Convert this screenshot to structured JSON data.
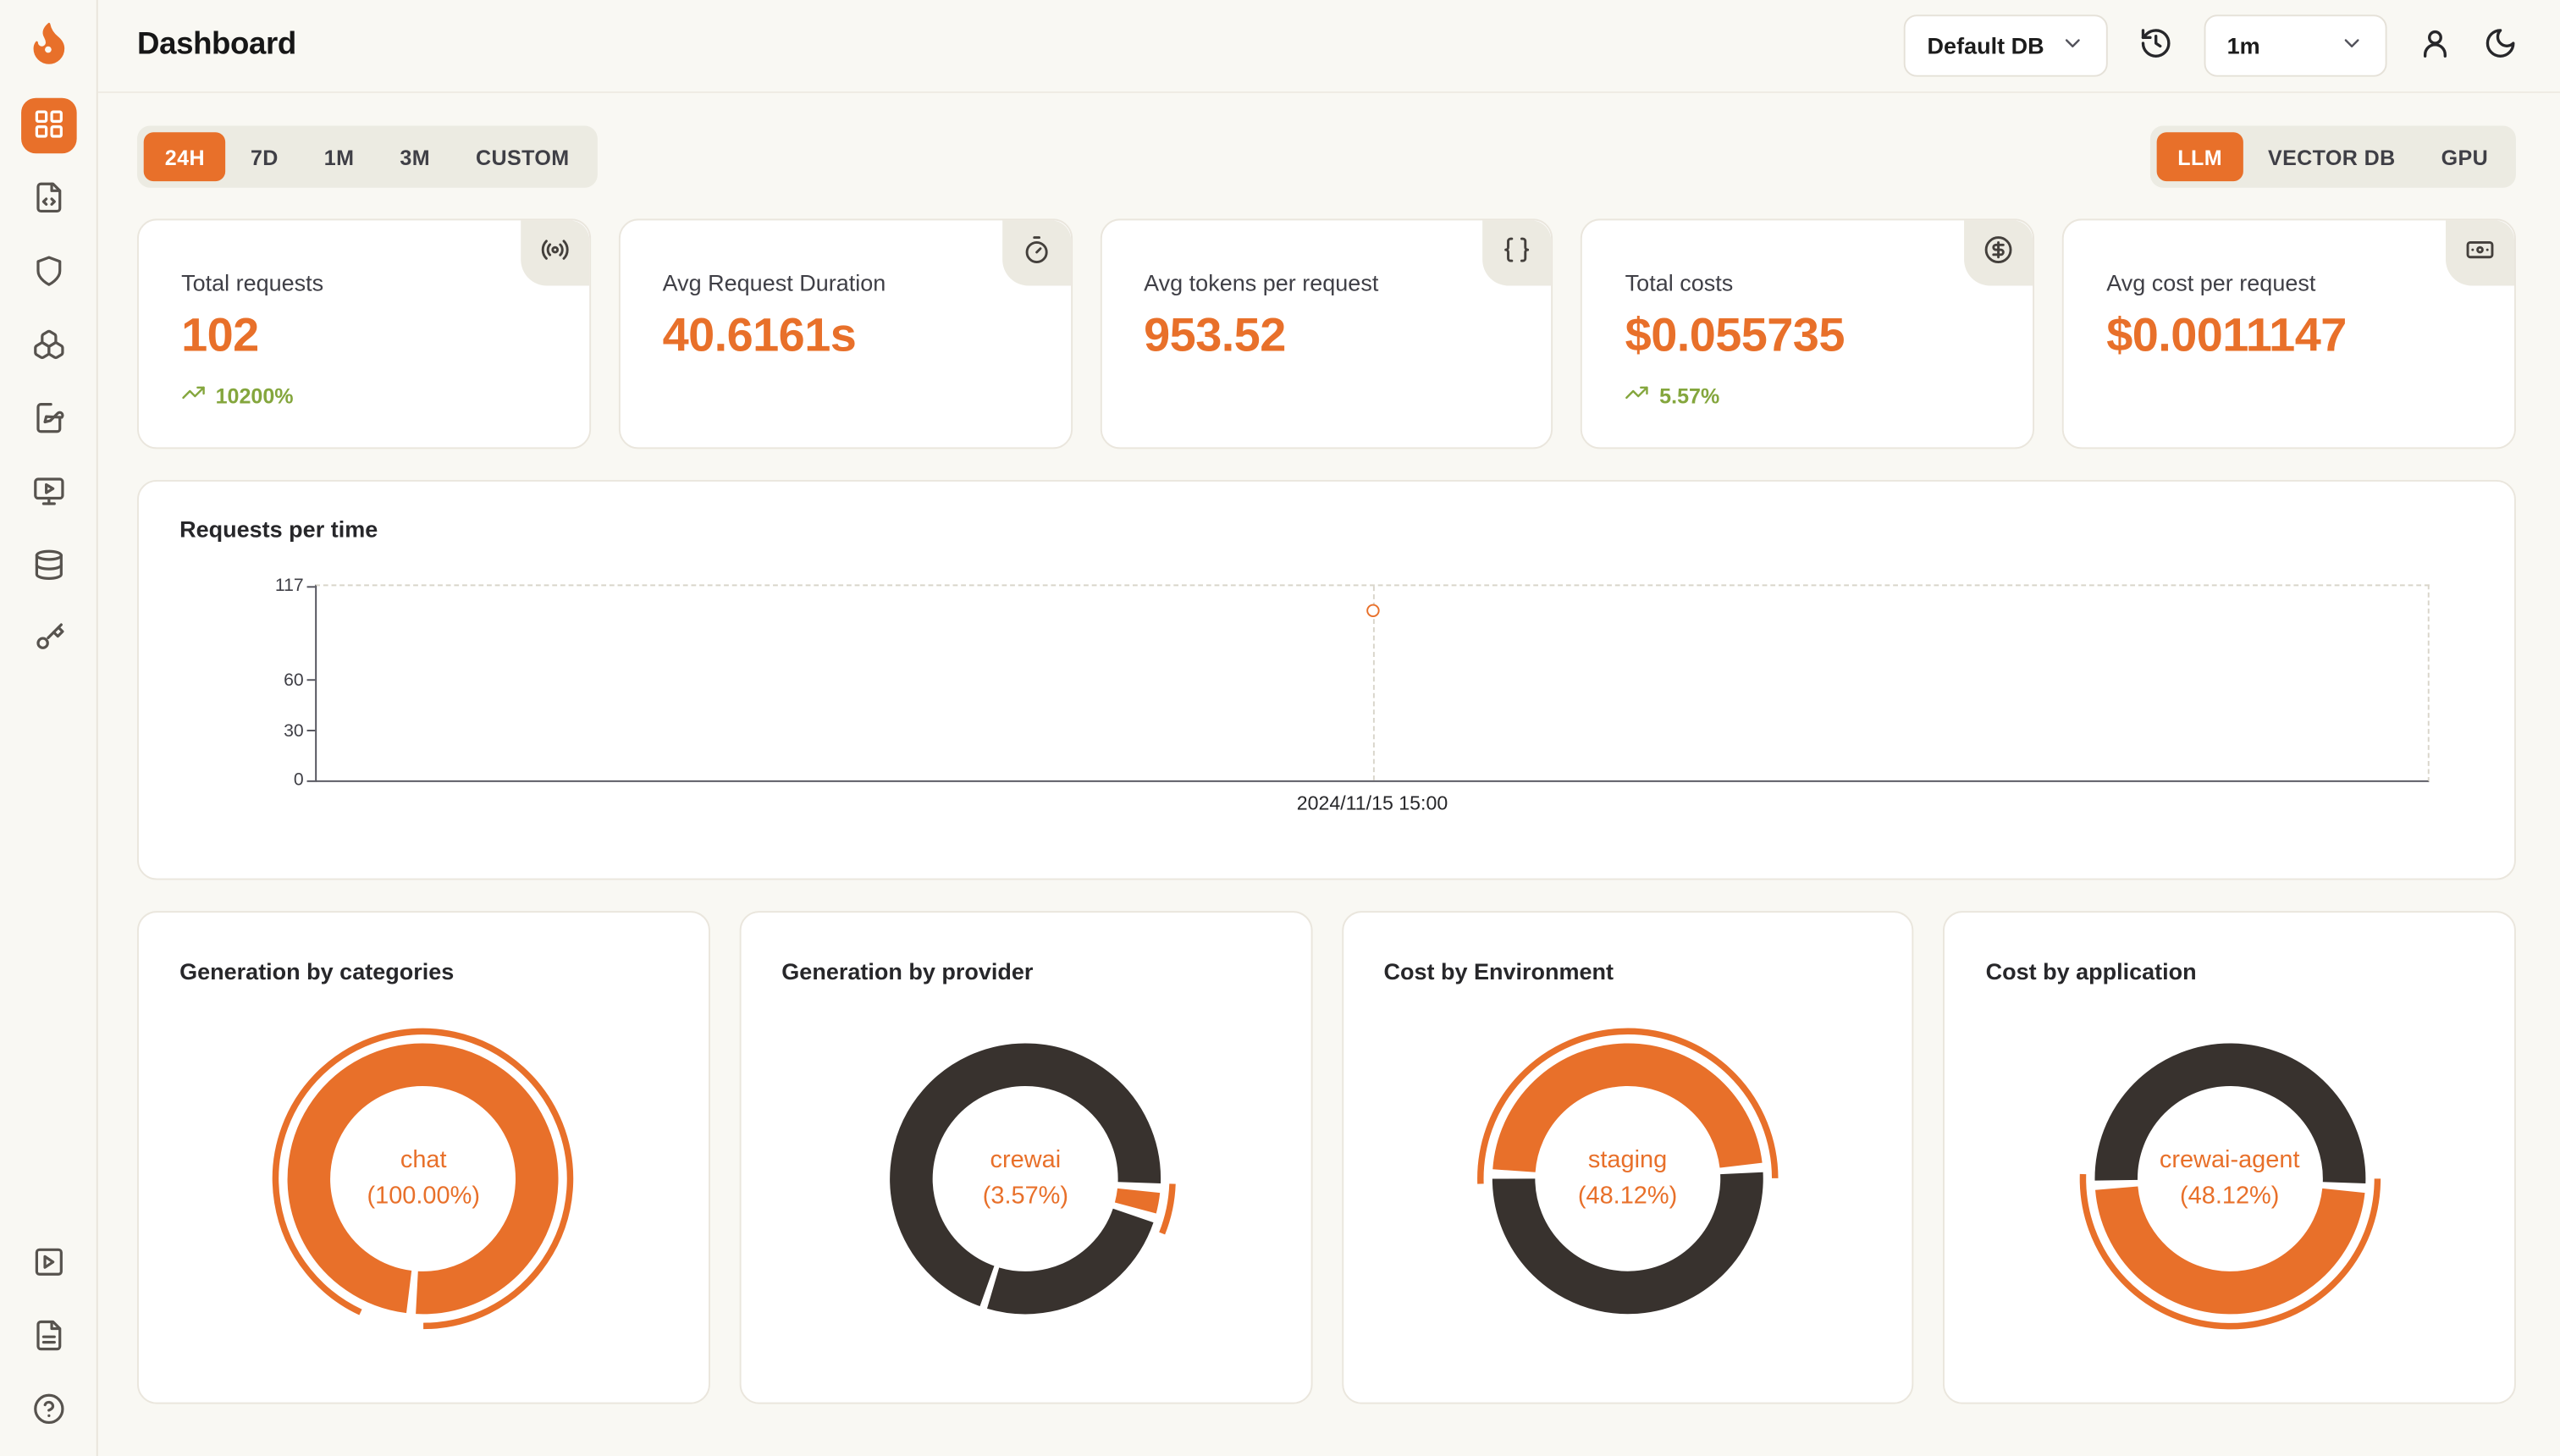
{
  "app": {
    "title": "Dashboard"
  },
  "topbar": {
    "db_select": {
      "value": "Default DB"
    },
    "interval_select": {
      "value": "1m"
    }
  },
  "filters": {
    "time_tabs": [
      {
        "label": "24H",
        "active": true
      },
      {
        "label": "7D",
        "active": false
      },
      {
        "label": "1M",
        "active": false
      },
      {
        "label": "3M",
        "active": false
      },
      {
        "label": "CUSTOM",
        "active": false
      }
    ],
    "scope_tabs": [
      {
        "label": "LLM",
        "active": true
      },
      {
        "label": "VECTOR DB",
        "active": false
      },
      {
        "label": "GPU",
        "active": false
      }
    ]
  },
  "stats": [
    {
      "label": "Total requests",
      "value": "102",
      "delta": "10200%"
    },
    {
      "label": "Avg Request Duration",
      "value": "40.6161s"
    },
    {
      "label": "Avg tokens per request",
      "value": "953.52"
    },
    {
      "label": "Total costs",
      "value": "$0.055735",
      "delta": "5.57%"
    },
    {
      "label": "Avg cost per request",
      "value": "$0.0011147"
    }
  ],
  "colors": {
    "accent": "#E8702A",
    "dark_slice": "#38322E",
    "green": "#84A63D"
  },
  "chart_data": [
    {
      "type": "line",
      "title": "Requests per time",
      "x": [
        "2024/11/15 15:00"
      ],
      "series": [
        {
          "name": "requests",
          "values": [
            102
          ]
        }
      ],
      "ylim": [
        0,
        117
      ],
      "yticks": [
        0,
        30,
        60,
        117
      ],
      "grid": "dashed-top-right",
      "point_style": "hollow-circle"
    },
    {
      "type": "pie",
      "title": "Generation by categories",
      "center_label": "chat",
      "center_pct": "(100.00%)",
      "slices": [
        {
          "name": "chat",
          "value": 100.0,
          "color": "#E8702A"
        }
      ],
      "rotation": 185,
      "highlight": {
        "start": 205,
        "sweep_pct": 93
      }
    },
    {
      "type": "pie",
      "title": "Generation by provider",
      "center_label": "crewai",
      "center_pct": "(3.57%)",
      "slices": [
        {
          "name": "crewai",
          "value": 3.57,
          "color": "#E8702A"
        },
        {
          "name": "others",
          "value": 96.43,
          "color": "#38322E"
        }
      ],
      "rotation": 94,
      "divider_angles": [
        198
      ],
      "highlight": {
        "start": 92,
        "sweep_pct": 5.5
      }
    },
    {
      "type": "pie",
      "title": "Cost by Environment",
      "center_label": "staging",
      "center_pct": "(48.12%)",
      "slices": [
        {
          "name": "staging",
          "value": 48.12,
          "color": "#E8702A"
        },
        {
          "name": "others",
          "value": 51.88,
          "color": "#38322E"
        }
      ],
      "rotation": 272,
      "highlight": {
        "start": 268,
        "sweep_pct": 50.5
      }
    },
    {
      "type": "pie",
      "title": "Cost by application",
      "center_label": "crewai-agent",
      "center_pct": "(48.12%)",
      "slices": [
        {
          "name": "crewai-agent",
          "value": 48.12,
          "color": "#E8702A"
        },
        {
          "name": "others",
          "value": 51.88,
          "color": "#38322E"
        }
      ],
      "rotation": 94,
      "highlight": {
        "start": 90,
        "sweep_pct": 50.5
      }
    }
  ]
}
